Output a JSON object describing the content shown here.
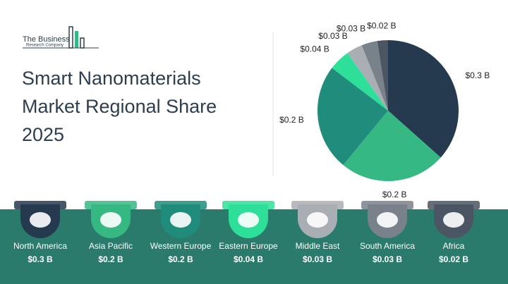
{
  "logo": {
    "line1": "The Business",
    "line2": "Research Company"
  },
  "chart_data": {
    "type": "pie",
    "title": "Smart Nanomaterials Market Regional Share 2025",
    "categories": [
      "North America",
      "Asia Pacific",
      "Western Europe",
      "Eastern Europe",
      "Middle East",
      "South America",
      "Africa"
    ],
    "values": [
      0.3,
      0.2,
      0.2,
      0.04,
      0.03,
      0.03,
      0.02
    ],
    "value_labels": [
      "$0.3 B",
      "$0.2 B",
      "$0.2 B",
      "$0.04 B",
      "$0.03 B",
      "$0.03 B",
      "$0.02 B"
    ],
    "colors": [
      "#253a4f",
      "#35b882",
      "#1f8c7c",
      "#2ddf98",
      "#a9aeb4",
      "#79818b",
      "#4b5563"
    ]
  }
}
